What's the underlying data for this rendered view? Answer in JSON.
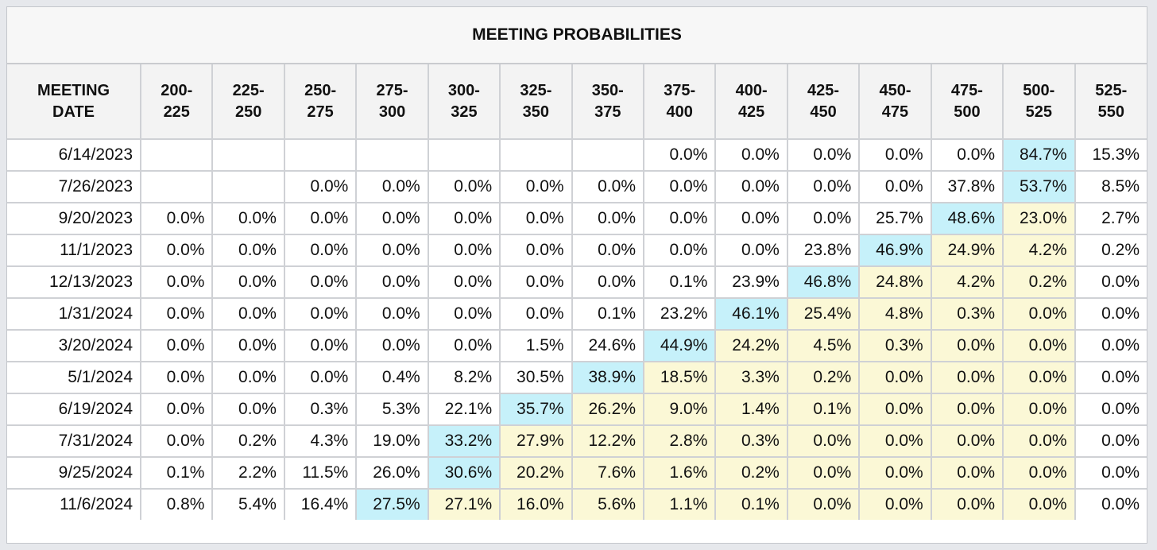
{
  "title": "MEETING PROBABILITIES",
  "header": {
    "date_label": "MEETING\nDATE",
    "ranges": [
      "200-\n225",
      "225-\n250",
      "250-\n275",
      "275-\n300",
      "300-\n325",
      "325-\n350",
      "350-\n375",
      "375-\n400",
      "400-\n425",
      "425-\n450",
      "450-\n475",
      "475-\n500",
      "500-\n525",
      "525-\n550"
    ]
  },
  "colors": {
    "highlight_max": "#c6f1fa",
    "highlight_above": "#fbf8d6",
    "default_bg": "#ffffff"
  },
  "rows": [
    {
      "date": "6/14/2023",
      "values": [
        "",
        "",
        "",
        "",
        "",
        "",
        "",
        "0.0%",
        "0.0%",
        "0.0%",
        "0.0%",
        "0.0%",
        "84.7%",
        "15.3%"
      ],
      "max_index": 12,
      "current_index": 12
    },
    {
      "date": "7/26/2023",
      "values": [
        "",
        "",
        "0.0%",
        "0.0%",
        "0.0%",
        "0.0%",
        "0.0%",
        "0.0%",
        "0.0%",
        "0.0%",
        "0.0%",
        "37.8%",
        "53.7%",
        "8.5%"
      ],
      "max_index": 12,
      "current_index": 12
    },
    {
      "date": "9/20/2023",
      "values": [
        "0.0%",
        "0.0%",
        "0.0%",
        "0.0%",
        "0.0%",
        "0.0%",
        "0.0%",
        "0.0%",
        "0.0%",
        "0.0%",
        "25.7%",
        "48.6%",
        "23.0%",
        "2.7%"
      ],
      "max_index": 11,
      "current_index": 12
    },
    {
      "date": "11/1/2023",
      "values": [
        "0.0%",
        "0.0%",
        "0.0%",
        "0.0%",
        "0.0%",
        "0.0%",
        "0.0%",
        "0.0%",
        "0.0%",
        "23.8%",
        "46.9%",
        "24.9%",
        "4.2%",
        "0.2%"
      ],
      "max_index": 10,
      "current_index": 12
    },
    {
      "date": "12/13/2023",
      "values": [
        "0.0%",
        "0.0%",
        "0.0%",
        "0.0%",
        "0.0%",
        "0.0%",
        "0.0%",
        "0.1%",
        "23.9%",
        "46.8%",
        "24.8%",
        "4.2%",
        "0.2%",
        "0.0%"
      ],
      "max_index": 9,
      "current_index": 12
    },
    {
      "date": "1/31/2024",
      "values": [
        "0.0%",
        "0.0%",
        "0.0%",
        "0.0%",
        "0.0%",
        "0.0%",
        "0.1%",
        "23.2%",
        "46.1%",
        "25.4%",
        "4.8%",
        "0.3%",
        "0.0%",
        "0.0%"
      ],
      "max_index": 8,
      "current_index": 12
    },
    {
      "date": "3/20/2024",
      "values": [
        "0.0%",
        "0.0%",
        "0.0%",
        "0.0%",
        "0.0%",
        "1.5%",
        "24.6%",
        "44.9%",
        "24.2%",
        "4.5%",
        "0.3%",
        "0.0%",
        "0.0%",
        "0.0%"
      ],
      "max_index": 7,
      "current_index": 12
    },
    {
      "date": "5/1/2024",
      "values": [
        "0.0%",
        "0.0%",
        "0.0%",
        "0.4%",
        "8.2%",
        "30.5%",
        "38.9%",
        "18.5%",
        "3.3%",
        "0.2%",
        "0.0%",
        "0.0%",
        "0.0%",
        "0.0%"
      ],
      "max_index": 6,
      "current_index": 12
    },
    {
      "date": "6/19/2024",
      "values": [
        "0.0%",
        "0.0%",
        "0.3%",
        "5.3%",
        "22.1%",
        "35.7%",
        "26.2%",
        "9.0%",
        "1.4%",
        "0.1%",
        "0.0%",
        "0.0%",
        "0.0%",
        "0.0%"
      ],
      "max_index": 5,
      "current_index": 12
    },
    {
      "date": "7/31/2024",
      "values": [
        "0.0%",
        "0.2%",
        "4.3%",
        "19.0%",
        "33.2%",
        "27.9%",
        "12.2%",
        "2.8%",
        "0.3%",
        "0.0%",
        "0.0%",
        "0.0%",
        "0.0%",
        "0.0%"
      ],
      "max_index": 4,
      "current_index": 12
    },
    {
      "date": "9/25/2024",
      "values": [
        "0.1%",
        "2.2%",
        "11.5%",
        "26.0%",
        "30.6%",
        "20.2%",
        "7.6%",
        "1.6%",
        "0.2%",
        "0.0%",
        "0.0%",
        "0.0%",
        "0.0%",
        "0.0%"
      ],
      "max_index": 4,
      "current_index": 12
    },
    {
      "date": "11/6/2024",
      "values": [
        "0.8%",
        "5.4%",
        "16.4%",
        "27.5%",
        "27.1%",
        "16.0%",
        "5.6%",
        "1.1%",
        "0.1%",
        "0.0%",
        "0.0%",
        "0.0%",
        "0.0%",
        "0.0%"
      ],
      "max_index": 3,
      "current_index": 12
    }
  ]
}
